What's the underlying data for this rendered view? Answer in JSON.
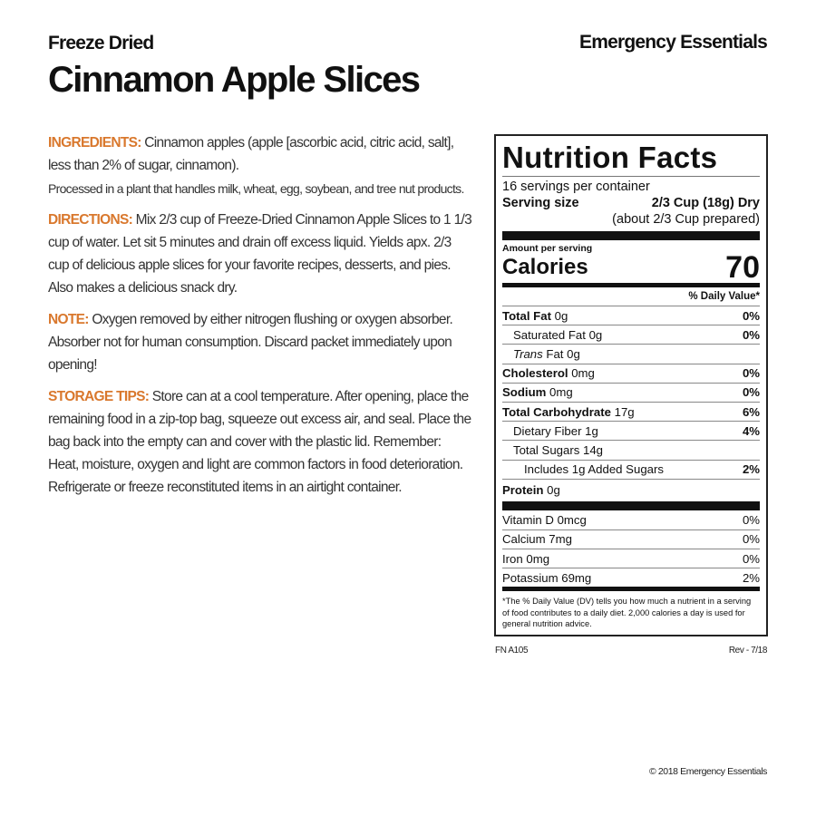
{
  "header": {
    "subtitle": "Freeze Dried",
    "title": "Cinnamon Apple Slices",
    "brand": "Emergency Essentials"
  },
  "sections": {
    "ingredients": {
      "label": "INGREDIENTS:",
      "text": " Cinnamon apples (apple [ascorbic acid, citric acid, salt], less than 2% of sugar, cinnamon).",
      "allergen": "Processed in a plant that handles milk, wheat, egg, soybean, and tree nut products."
    },
    "directions": {
      "label": "DIRECTIONS:",
      "text": " Mix 2/3 cup of Freeze-Dried Cinnamon Apple Slices to 1 1/3 cup of water. Let sit 5 minutes and drain off excess liquid. Yields apx. 2/3 cup of delicious apple slices for your favorite recipes, desserts, and pies. Also makes a delicious snack dry."
    },
    "note": {
      "label": "NOTE:",
      "text": " Oxygen removed by either nitrogen flushing or oxygen absorber. Absorber not for human consumption. Discard packet immediately upon opening!"
    },
    "storage": {
      "label": "STORAGE TIPS:",
      "text": " Store can at a cool temperature. After opening, place the remaining food in a zip-top bag, squeeze out excess air, and seal. Place the bag back into the empty can and cover with the plastic lid. Remember: Heat, moisture, oxygen and light are common factors in food deterioration. Refrigerate or freeze reconstituted items in an airtight container."
    }
  },
  "nutrition": {
    "title": "Nutrition Facts",
    "servings": "16 servings per container",
    "serving_label": "Serving size",
    "serving_value": "2/3 Cup (18g) Dry",
    "serving_prepared": "(about 2/3 Cup prepared)",
    "amount_label": "Amount per serving",
    "calories_label": "Calories",
    "calories": "70",
    "dv_header": "% Daily Value*",
    "rows": [
      {
        "name": "Total Fat",
        "amt": "0g",
        "dv": "0%"
      },
      {
        "name": "Saturated Fat",
        "amt": "0g",
        "dv": "0%"
      },
      {
        "name": "Trans",
        "name2": " Fat",
        "amt": "0g",
        "dv": ""
      },
      {
        "name": "Cholesterol",
        "amt": "0mg",
        "dv": "0%"
      },
      {
        "name": "Sodium",
        "amt": "0mg",
        "dv": "0%"
      },
      {
        "name": "Total Carbohydrate",
        "amt": "17g",
        "dv": "6%"
      },
      {
        "name": "Dietary Fiber",
        "amt": "1g",
        "dv": "4%"
      },
      {
        "name": "Total Sugars",
        "amt": "14g",
        "dv": ""
      },
      {
        "name": "Includes 1g Added Sugars",
        "amt": "",
        "dv": "2%"
      },
      {
        "name": "Protein",
        "amt": "0g",
        "dv": ""
      }
    ],
    "vitamins": [
      {
        "name": "Vitamin D 0mcg",
        "dv": "0%"
      },
      {
        "name": "Calcium 7mg",
        "dv": "0%"
      },
      {
        "name": "Iron 0mg",
        "dv": "0%"
      },
      {
        "name": "Potassium 69mg",
        "dv": "2%"
      }
    ],
    "footnote": "*The % Daily Value (DV) tells you how much a nutrient in a serving of food contributes to a daily diet. 2,000 calories a day is used for general nutrition advice."
  },
  "footer": {
    "code": "FN A105",
    "revision": "Rev - 7/18",
    "copyright": "© 2018 Emergency Essentials"
  }
}
